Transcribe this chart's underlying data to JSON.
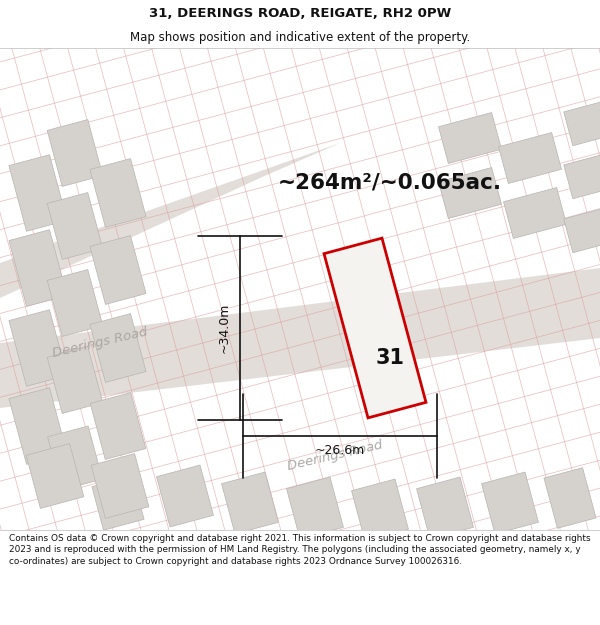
{
  "title_line1": "31, DEERINGS ROAD, REIGATE, RH2 0PW",
  "title_line2": "Map shows position and indicative extent of the property.",
  "area_text": "~264m²/~0.065ac.",
  "dim_vertical": "~34.0m",
  "dim_horizontal": "~26.6m",
  "label_31": "31",
  "road_label_left": "Deerings Road",
  "road_label_bottom": "Deerings Road",
  "footer_text": "Contains OS data © Crown copyright and database right 2021. This information is subject to Crown copyright and database rights 2023 and is reproduced with the permission of HM Land Registry. The polygons (including the associated geometry, namely x, y co-ordinates) are subject to Crown copyright and database rights 2023 Ordnance Survey 100026316.",
  "map_bg": "#f0eeea",
  "road_color": "#e2ddd8",
  "grid_line_color": "#dba0a0",
  "building_color": "#d5d1cc",
  "building_edge_color": "#b8b4b0",
  "red_plot_color": "#cc0000",
  "plot_fill": "#f5f3f0",
  "dim_line_color": "#111111",
  "text_color": "#111111",
  "road_text_color": "#aaa8a4",
  "footer_color": "#111111",
  "header_bg": "#ffffff",
  "footer_bg": "#ffffff"
}
